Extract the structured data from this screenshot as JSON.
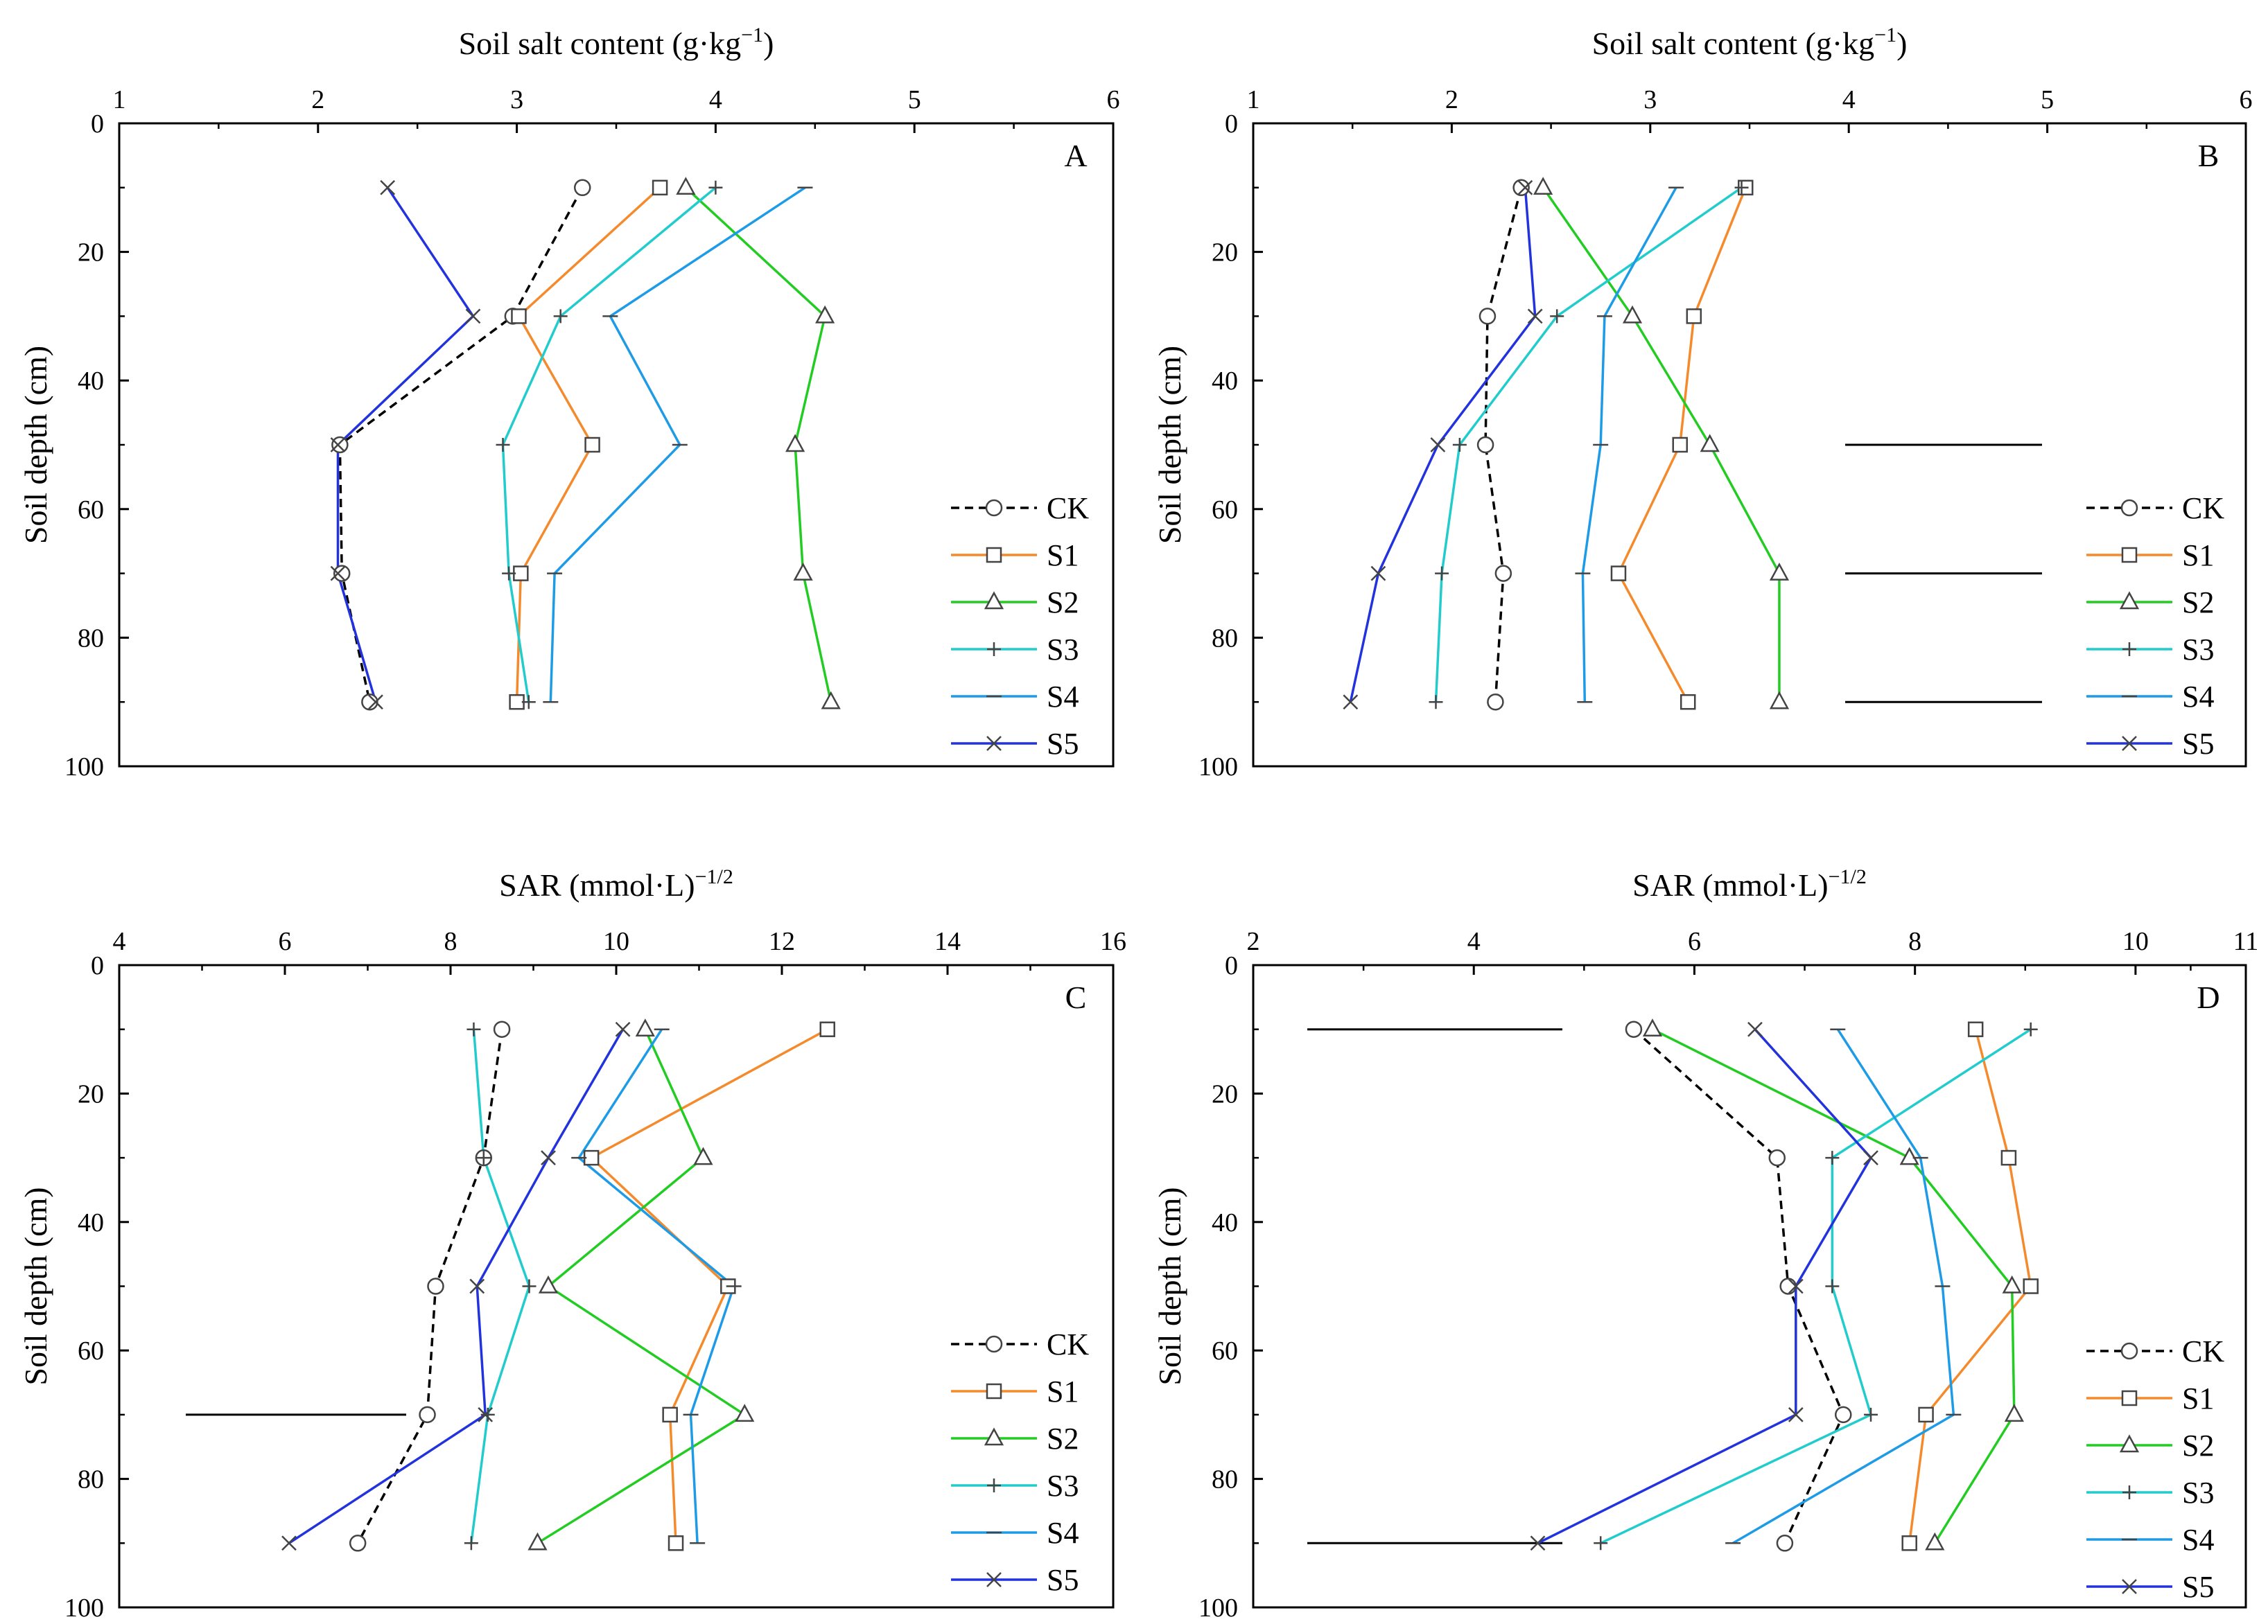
{
  "colors": {
    "CK": "#000000",
    "S1": "#F58A2C",
    "S2": "#22CC22",
    "S3": "#22CCCC",
    "S4": "#1E9BE6",
    "S5": "#2233DD"
  },
  "legend": [
    "CK",
    "S1",
    "S2",
    "S3",
    "S4",
    "S5"
  ],
  "chart_data": [
    {
      "panel": "A",
      "type": "line",
      "orientation": "depth-profile",
      "xlabel_main": "Soil salt content (g·kg",
      "xlabel_sup": "−1",
      "xlabel_end": ")",
      "ylabel": "Soil depth (cm)",
      "xlim": [
        1,
        6
      ],
      "xticks": [
        1,
        2,
        3,
        4,
        5,
        6
      ],
      "ylim": [
        0,
        100
      ],
      "yticks": [
        0,
        20,
        40,
        60,
        80,
        100
      ],
      "y": [
        10,
        30,
        50,
        70,
        90
      ],
      "series": [
        {
          "name": "CK",
          "marker": "circle",
          "dash": true,
          "values": [
            3.33,
            2.98,
            2.11,
            2.12,
            2.26
          ]
        },
        {
          "name": "S1",
          "marker": "square",
          "dash": false,
          "values": [
            3.72,
            3.01,
            3.38,
            3.02,
            3.0
          ]
        },
        {
          "name": "S2",
          "marker": "triangle",
          "dash": false,
          "values": [
            3.85,
            4.55,
            4.4,
            4.44,
            4.58
          ]
        },
        {
          "name": "S3",
          "marker": "plus",
          "dash": false,
          "values": [
            4.0,
            3.22,
            2.93,
            2.96,
            3.06
          ]
        },
        {
          "name": "S4",
          "marker": "dash",
          "dash": false,
          "values": [
            4.45,
            3.47,
            3.82,
            3.19,
            3.17
          ]
        },
        {
          "name": "S5",
          "marker": "x",
          "dash": false,
          "values": [
            2.35,
            2.78,
            2.1,
            2.1,
            2.29
          ]
        }
      ],
      "refline_ys": []
    },
    {
      "panel": "B",
      "type": "line",
      "orientation": "depth-profile",
      "xlabel_main": "Soil salt content (g·kg",
      "xlabel_sup": "−1",
      "xlabel_end": ")",
      "ylabel": "Soil depth (cm)",
      "xlim": [
        1,
        6
      ],
      "xticks": [
        1,
        2,
        3,
        4,
        5,
        6
      ],
      "ylim": [
        0,
        100
      ],
      "yticks": [
        0,
        20,
        40,
        60,
        80,
        100
      ],
      "y": [
        10,
        30,
        50,
        70,
        90
      ],
      "series": [
        {
          "name": "CK",
          "marker": "circle",
          "dash": true,
          "values": [
            2.35,
            2.18,
            2.17,
            2.26,
            2.22
          ]
        },
        {
          "name": "S1",
          "marker": "square",
          "dash": false,
          "values": [
            3.48,
            3.22,
            3.15,
            2.84,
            3.19
          ]
        },
        {
          "name": "S2",
          "marker": "triangle",
          "dash": false,
          "values": [
            2.46,
            2.91,
            3.3,
            3.65,
            3.65
          ]
        },
        {
          "name": "S3",
          "marker": "plus",
          "dash": false,
          "values": [
            3.46,
            2.53,
            2.04,
            1.95,
            1.92
          ]
        },
        {
          "name": "S4",
          "marker": "dash",
          "dash": false,
          "values": [
            3.13,
            2.77,
            2.75,
            2.66,
            2.67
          ]
        },
        {
          "name": "S5",
          "marker": "x",
          "dash": false,
          "values": [
            2.37,
            2.42,
            1.93,
            1.63,
            1.49
          ]
        }
      ],
      "refline_ys": [
        50,
        70,
        90
      ]
    },
    {
      "panel": "C",
      "type": "line",
      "orientation": "depth-profile",
      "xlabel_main": "SAR (mmol·L)",
      "xlabel_sup": "−1/2",
      "xlabel_end": "",
      "ylabel": "Soil depth (cm)",
      "xlim": [
        4,
        16
      ],
      "xticks": [
        4,
        6,
        8,
        10,
        12,
        14,
        16
      ],
      "ylim": [
        0,
        100
      ],
      "yticks": [
        0,
        20,
        40,
        60,
        80,
        100
      ],
      "y": [
        10,
        30,
        50,
        70,
        90
      ],
      "series": [
        {
          "name": "CK",
          "marker": "circle",
          "dash": true,
          "values": [
            8.62,
            8.4,
            7.82,
            7.72,
            6.88
          ]
        },
        {
          "name": "S1",
          "marker": "square",
          "dash": false,
          "values": [
            12.55,
            9.7,
            11.35,
            10.65,
            10.72
          ]
        },
        {
          "name": "S2",
          "marker": "triangle",
          "dash": false,
          "values": [
            10.35,
            11.05,
            9.18,
            11.55,
            9.05
          ]
        },
        {
          "name": "S3",
          "marker": "plus",
          "dash": false,
          "values": [
            8.28,
            8.4,
            8.95,
            8.45,
            8.25
          ]
        },
        {
          "name": "S4",
          "marker": "dash",
          "dash": false,
          "values": [
            10.55,
            9.55,
            11.42,
            10.9,
            10.98
          ]
        },
        {
          "name": "S5",
          "marker": "x",
          "dash": false,
          "values": [
            10.08,
            9.18,
            8.32,
            8.42,
            6.05
          ]
        }
      ],
      "refline_ys": [
        70
      ]
    },
    {
      "panel": "D",
      "type": "line",
      "orientation": "depth-profile",
      "xlabel_main": "SAR (mmol·L)",
      "xlabel_sup": "−1/2",
      "xlabel_end": "",
      "ylabel": "Soil depth (cm)",
      "xlim": [
        2,
        11
      ],
      "xticks": [
        2,
        4,
        6,
        8,
        10,
        11
      ],
      "ylim": [
        0,
        100
      ],
      "yticks": [
        0,
        20,
        40,
        60,
        80,
        100
      ],
      "y": [
        10,
        30,
        50,
        70,
        90
      ],
      "series": [
        {
          "name": "CK",
          "marker": "circle",
          "dash": true,
          "values": [
            5.45,
            6.75,
            6.85,
            7.35,
            6.82
          ]
        },
        {
          "name": "S1",
          "marker": "square",
          "dash": false,
          "values": [
            8.55,
            8.85,
            9.05,
            8.1,
            7.95
          ]
        },
        {
          "name": "S2",
          "marker": "triangle",
          "dash": false,
          "values": [
            5.62,
            7.95,
            8.88,
            8.9,
            8.18
          ]
        },
        {
          "name": "S3",
          "marker": "plus",
          "dash": false,
          "values": [
            9.05,
            7.25,
            7.25,
            7.6,
            5.15
          ]
        },
        {
          "name": "S4",
          "marker": "dash",
          "dash": false,
          "values": [
            7.3,
            8.05,
            8.25,
            8.35,
            6.35
          ]
        },
        {
          "name": "S5",
          "marker": "x",
          "dash": false,
          "values": [
            6.55,
            7.6,
            6.92,
            6.92,
            4.58
          ]
        }
      ],
      "refline_ys": [
        10,
        90
      ]
    }
  ]
}
